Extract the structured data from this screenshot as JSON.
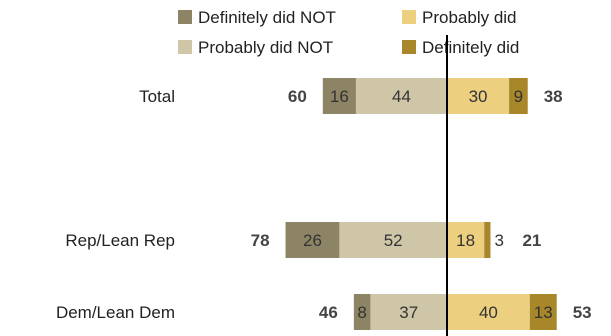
{
  "chart_data": {
    "type": "bar",
    "orientation": "horizontal",
    "stacking": "diverging",
    "categories": [
      "Total",
      "Rep/Lean Rep",
      "Dem/Lean Dem"
    ],
    "series": [
      {
        "name": "Definitely did NOT",
        "side": "negative",
        "color": "#8c8464",
        "values": [
          16,
          26,
          8
        ]
      },
      {
        "name": "Probably did NOT",
        "side": "negative",
        "color": "#cfc6a8",
        "values": [
          44,
          52,
          37
        ]
      },
      {
        "name": "Probably did",
        "side": "positive",
        "color": "#ecd07f",
        "values": [
          30,
          18,
          40
        ]
      },
      {
        "name": "Definitely did",
        "side": "positive",
        "color": "#a8862a",
        "values": [
          9,
          3,
          13
        ]
      }
    ],
    "net_negative": [
      60,
      78,
      46
    ],
    "net_positive": [
      38,
      21,
      53
    ],
    "legend_rows": [
      [
        "Definitely did NOT",
        "Probably did"
      ],
      [
        "Probably did NOT",
        "Definitely did"
      ]
    ],
    "legend_position": "top",
    "grid": false
  }
}
